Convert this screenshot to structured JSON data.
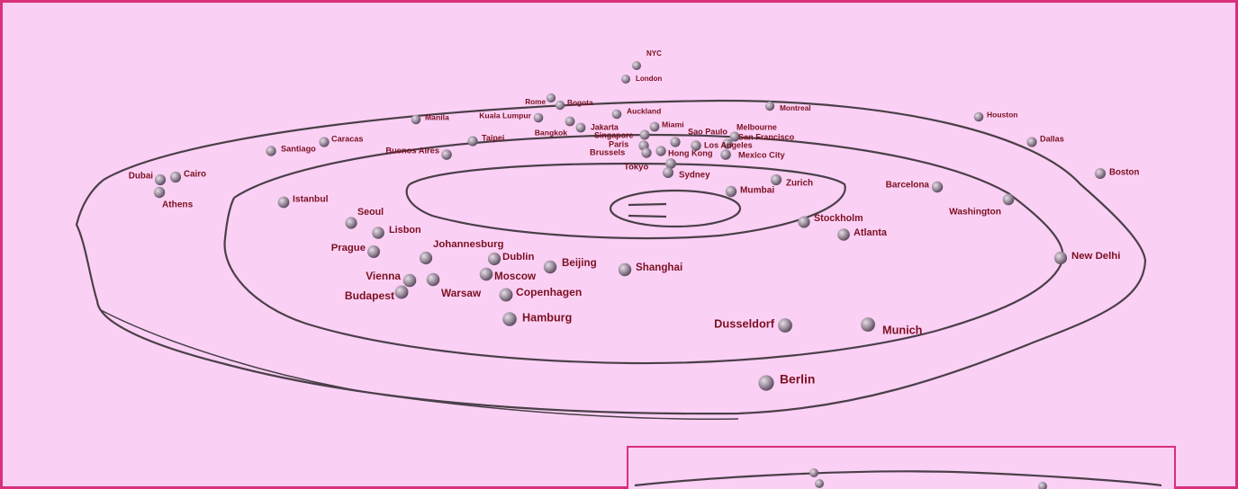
{
  "cities": [
    {
      "name": "NYC"
    },
    {
      "name": "London"
    },
    {
      "name": "Rome"
    },
    {
      "name": "Bogota"
    },
    {
      "name": "Auckland"
    },
    {
      "name": "Montreal"
    },
    {
      "name": "Houston"
    },
    {
      "name": "Dallas"
    },
    {
      "name": "Boston"
    },
    {
      "name": "Manila"
    },
    {
      "name": "Kuala Lumpur"
    },
    {
      "name": "Bangkok"
    },
    {
      "name": "Jakarta"
    },
    {
      "name": "Singapore"
    },
    {
      "name": "Miami"
    },
    {
      "name": "Sao Paulo"
    },
    {
      "name": "Melbourne"
    },
    {
      "name": "San Francisco"
    },
    {
      "name": "Paris"
    },
    {
      "name": "Los Angeles"
    },
    {
      "name": "Mexico City"
    },
    {
      "name": "Brussels"
    },
    {
      "name": "Hong Kong"
    },
    {
      "name": "Tokyo"
    },
    {
      "name": "Sydney"
    },
    {
      "name": "Taipei"
    },
    {
      "name": "Caracas"
    },
    {
      "name": "Santiago"
    },
    {
      "name": "Buenos Aires"
    },
    {
      "name": "Dubai"
    },
    {
      "name": "Cairo"
    },
    {
      "name": "Athens"
    },
    {
      "name": "Mumbai"
    },
    {
      "name": "Zurich"
    },
    {
      "name": "Barcelona"
    },
    {
      "name": "Washington"
    },
    {
      "name": "Istanbul"
    },
    {
      "name": "Seoul"
    },
    {
      "name": "Lisbon"
    },
    {
      "name": "Prague"
    },
    {
      "name": "Stockholm"
    },
    {
      "name": "Atlanta"
    },
    {
      "name": "Johannesburg"
    },
    {
      "name": "Dublin"
    },
    {
      "name": "Beijing"
    },
    {
      "name": "Shanghai"
    },
    {
      "name": "New Delhi"
    },
    {
      "name": "Moscow"
    },
    {
      "name": "Vienna"
    },
    {
      "name": "Warsaw"
    },
    {
      "name": "Budapest"
    },
    {
      "name": "Copenhagen"
    },
    {
      "name": "Hamburg"
    },
    {
      "name": "Dusseldorf"
    },
    {
      "name": "Munich"
    },
    {
      "name": "Berlin"
    }
  ]
}
